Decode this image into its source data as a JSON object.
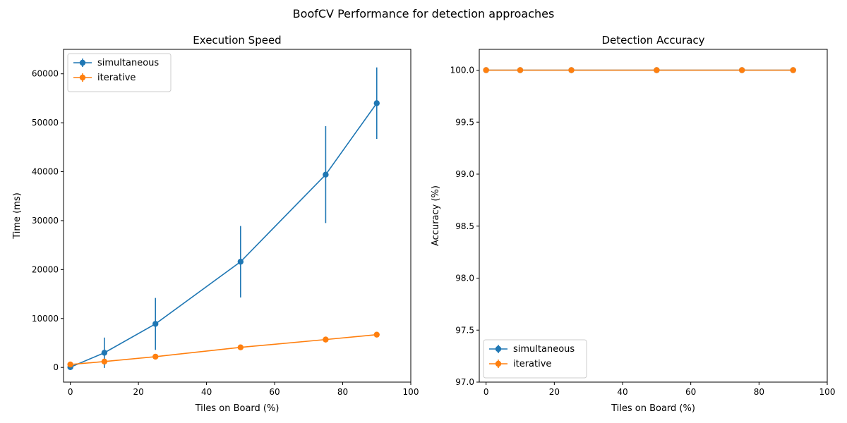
{
  "figure": {
    "suptitle": "BoofCV Performance for detection approaches"
  },
  "chart_data": [
    {
      "type": "line",
      "title": "Execution Speed",
      "xlabel": "Tiles on Board (%)",
      "ylabel": "Time (ms)",
      "xlim": [
        -2,
        100
      ],
      "ylim": [
        -3000,
        65000
      ],
      "xticks": [
        0,
        20,
        40,
        60,
        80,
        100
      ],
      "yticks": [
        0,
        10000,
        20000,
        30000,
        40000,
        50000,
        60000
      ],
      "grid": false,
      "legend_position": "top-left",
      "x": [
        0,
        10,
        25,
        50,
        75,
        90
      ],
      "series": [
        {
          "name": "simultaneous",
          "color": "#1f77b4",
          "values": [
            50,
            3000,
            8900,
            21600,
            39400,
            54000
          ],
          "errors": [
            200,
            3100,
            5300,
            7300,
            9900,
            7300
          ]
        },
        {
          "name": "iterative",
          "color": "#ff7f0e",
          "values": [
            600,
            1200,
            2200,
            4100,
            5700,
            6700
          ],
          "errors": [
            300,
            400,
            400,
            500,
            600,
            500
          ]
        }
      ]
    },
    {
      "type": "line",
      "title": "Detection Accuracy",
      "xlabel": "Tiles on Board (%)",
      "ylabel": "Accuracy (%)",
      "xlim": [
        -2,
        100
      ],
      "ylim": [
        97.0,
        100.2
      ],
      "xticks": [
        0,
        20,
        40,
        60,
        80,
        100
      ],
      "yticks": [
        97.0,
        97.5,
        98.0,
        98.5,
        99.0,
        99.5,
        100.0
      ],
      "ytick_decimals": 1,
      "grid": false,
      "legend_position": "bottom-left",
      "x": [
        0,
        10,
        25,
        50,
        75,
        90
      ],
      "series": [
        {
          "name": "simultaneous",
          "color": "#1f77b4",
          "values": [
            100,
            100,
            100,
            100,
            100,
            100
          ],
          "errors": [
            0,
            0,
            0,
            0,
            0,
            0
          ]
        },
        {
          "name": "iterative",
          "color": "#ff7f0e",
          "values": [
            100,
            100,
            100,
            100,
            100,
            100
          ],
          "errors": [
            0,
            0,
            0,
            0,
            0,
            0
          ]
        }
      ]
    }
  ]
}
